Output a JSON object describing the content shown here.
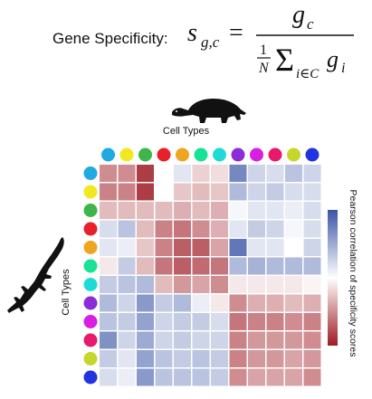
{
  "formula": {
    "label": "Gene Specificity:",
    "lhs": "s",
    "lhs_sub": "g,c",
    "equals": "=",
    "numerator": "g",
    "numerator_sub": "c",
    "frac_num": "1",
    "frac_den": "N",
    "sigma": "Σ",
    "sum_sub": "i∈C",
    "term": "g",
    "term_sub": "i"
  },
  "x_axis_label": "Cell Types",
  "y_axis_label": "Cell Types",
  "colorbar_label": "Pearson correlation of specificity scores",
  "icons": {
    "top": "turtle-silhouette-icon",
    "left": "lizard-silhouette-icon"
  },
  "cell_type_colors": [
    "#21a9e1",
    "#f2e81f",
    "#3db54a",
    "#e8202a",
    "#eea620",
    "#19e196",
    "#1edbd6",
    "#8c2bd8",
    "#d61fe0",
    "#e8186a",
    "#c6d62a",
    "#2233e0"
  ],
  "chart_data": {
    "type": "heatmap",
    "rows": 12,
    "cols": 12,
    "values": [
      [
        0.5,
        0.5,
        0.85,
        0.0,
        -0.15,
        0.2,
        0.15,
        -0.7,
        -0.25,
        -0.2,
        -0.35,
        -0.25
      ],
      [
        0.55,
        0.55,
        0.85,
        0.0,
        0.25,
        0.3,
        0.25,
        -0.4,
        -0.25,
        -0.3,
        -0.2,
        -0.2
      ],
      [
        0.3,
        0.3,
        0.3,
        0.3,
        0.35,
        0.3,
        0.35,
        -0.05,
        -0.15,
        -0.15,
        -0.1,
        -0.2
      ],
      [
        -0.2,
        -0.35,
        0.3,
        0.55,
        0.6,
        0.5,
        0.35,
        -0.15,
        -0.3,
        -0.25,
        -0.05,
        -0.2
      ],
      [
        -0.15,
        -0.1,
        0.25,
        0.55,
        0.7,
        0.7,
        0.4,
        -0.8,
        -0.15,
        -0.15,
        0.0,
        -0.25
      ],
      [
        0.1,
        -0.3,
        0.3,
        0.6,
        0.7,
        0.65,
        0.6,
        -0.4,
        -0.45,
        -0.4,
        -0.4,
        -0.4
      ],
      [
        -0.3,
        -0.35,
        -0.4,
        0.3,
        0.45,
        0.4,
        0.5,
        0.1,
        0.1,
        0.1,
        0.1,
        0.05
      ],
      [
        -0.4,
        -0.25,
        -0.6,
        -0.3,
        -0.4,
        -0.1,
        0.1,
        0.5,
        0.35,
        0.35,
        0.3,
        0.35
      ],
      [
        -0.35,
        -0.3,
        -0.55,
        -0.25,
        -0.3,
        -0.3,
        -0.2,
        0.6,
        0.55,
        0.55,
        0.5,
        0.55
      ],
      [
        -0.65,
        -0.25,
        -0.5,
        -0.25,
        -0.3,
        -0.25,
        -0.25,
        0.55,
        0.45,
        0.45,
        0.45,
        0.5
      ],
      [
        -0.3,
        -0.15,
        -0.55,
        -0.35,
        -0.3,
        -0.35,
        -0.3,
        0.55,
        0.45,
        0.45,
        0.4,
        0.45
      ],
      [
        -0.2,
        -0.1,
        -0.6,
        -0.35,
        -0.35,
        -0.35,
        -0.3,
        0.5,
        0.4,
        0.4,
        0.4,
        0.5
      ]
    ],
    "colormap": {
      "low": "#3a55a6",
      "mid": "#ffffff",
      "high": "#9e1b24"
    },
    "range": [
      -1,
      1
    ]
  }
}
